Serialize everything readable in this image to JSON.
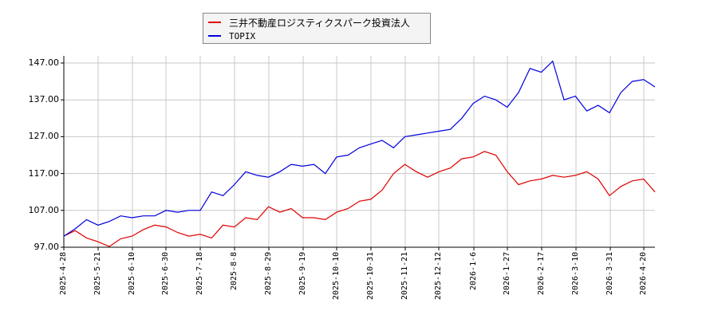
{
  "legend": {
    "items": [
      {
        "label": "三井不動産ロジスティクスパーク投資法人",
        "color": "#e00000"
      },
      {
        "label": "TOPIX",
        "color": "#0000dd"
      }
    ]
  },
  "chart_data": {
    "type": "line",
    "title": "",
    "xlabel": "",
    "ylabel": "",
    "ylim": [
      97,
      149
    ],
    "yticks": [
      "147.00",
      "137.00",
      "127.00",
      "117.00",
      "107.00",
      "97.00"
    ],
    "xticks": [
      "2025-4-28",
      "2025-5-21",
      "2025-6-10",
      "2025-6-30",
      "2025-7-18",
      "2025-8-8",
      "2025-8-29",
      "2025-9-19",
      "2025-10-10",
      "2025-10-31",
      "2025-11-21",
      "2025-12-12",
      "2026-1-6",
      "2026-1-27",
      "2026-2-17",
      "2026-3-10",
      "2026-3-31",
      "2026-4-20"
    ],
    "grid": true,
    "legend_position": "top",
    "series": [
      {
        "name": "三井不動産ロジスティクスパーク投資法人",
        "color": "#e00000",
        "x": [
          "2025-4-28",
          "2025-5-7",
          "2025-5-14",
          "2025-5-21",
          "2025-5-28",
          "2025-6-3",
          "2025-6-10",
          "2025-6-17",
          "2025-6-24",
          "2025-6-30",
          "2025-7-7",
          "2025-7-14",
          "2025-7-18",
          "2025-7-25",
          "2025-8-1",
          "2025-8-8",
          "2025-8-15",
          "2025-8-22",
          "2025-8-29",
          "2025-9-5",
          "2025-9-12",
          "2025-9-19",
          "2025-9-26",
          "2025-10-3",
          "2025-10-10",
          "2025-10-17",
          "2025-10-24",
          "2025-10-31",
          "2025-11-7",
          "2025-11-14",
          "2025-11-21",
          "2025-11-28",
          "2025-12-5",
          "2025-12-12",
          "2025-12-19",
          "2025-12-26",
          "2026-1-6",
          "2026-1-13",
          "2026-1-20",
          "2026-1-27",
          "2026-2-3",
          "2026-2-10",
          "2026-2-17",
          "2026-2-24",
          "2026-3-3",
          "2026-3-10",
          "2026-3-17",
          "2026-3-24",
          "2026-3-31",
          "2026-4-7",
          "2026-4-14",
          "2026-4-20",
          "2026-4-27"
        ],
        "values": [
          100.0,
          101.5,
          99.5,
          98.5,
          97.2,
          99.3,
          100.0,
          101.8,
          103.0,
          102.5,
          101.0,
          100.0,
          100.5,
          99.5,
          103.0,
          102.5,
          105.0,
          104.5,
          108.0,
          106.5,
          107.5,
          105.0,
          105.0,
          104.5,
          106.5,
          107.5,
          109.5,
          110.0,
          112.5,
          117.0,
          119.5,
          117.5,
          116.0,
          117.5,
          118.5,
          121.0,
          121.5,
          123.0,
          122.0,
          117.5,
          114.0,
          115.0,
          115.5,
          116.5,
          116.0,
          116.5,
          117.5,
          115.5,
          111.0,
          113.5,
          115.0,
          115.5,
          112.0
        ]
      },
      {
        "name": "TOPIX",
        "color": "#0000dd",
        "x": [
          "2025-4-28",
          "2025-5-7",
          "2025-5-14",
          "2025-5-21",
          "2025-5-28",
          "2025-6-3",
          "2025-6-10",
          "2025-6-17",
          "2025-6-24",
          "2025-6-30",
          "2025-7-7",
          "2025-7-14",
          "2025-7-18",
          "2025-7-25",
          "2025-8-1",
          "2025-8-8",
          "2025-8-15",
          "2025-8-22",
          "2025-8-29",
          "2025-9-5",
          "2025-9-12",
          "2025-9-19",
          "2025-9-26",
          "2025-10-3",
          "2025-10-10",
          "2025-10-17",
          "2025-10-24",
          "2025-10-31",
          "2025-11-7",
          "2025-11-14",
          "2025-11-21",
          "2025-11-28",
          "2025-12-5",
          "2025-12-12",
          "2025-12-19",
          "2025-12-26",
          "2026-1-6",
          "2026-1-13",
          "2026-1-20",
          "2026-1-27",
          "2026-2-3",
          "2026-2-10",
          "2026-2-17",
          "2026-2-24",
          "2026-3-3",
          "2026-3-10",
          "2026-3-17",
          "2026-3-24",
          "2026-3-31",
          "2026-4-7",
          "2026-4-14",
          "2026-4-20",
          "2026-4-27"
        ],
        "values": [
          100.0,
          102.0,
          104.5,
          103.0,
          104.0,
          105.5,
          105.0,
          105.5,
          105.5,
          107.0,
          106.5,
          107.0,
          107.0,
          112.0,
          111.0,
          114.0,
          117.5,
          116.5,
          116.0,
          117.5,
          119.5,
          119.0,
          119.5,
          117.0,
          121.5,
          122.0,
          124.0,
          125.0,
          126.0,
          124.0,
          127.0,
          127.5,
          128.0,
          128.5,
          129.0,
          132.0,
          136.0,
          138.0,
          137.0,
          135.0,
          139.0,
          145.5,
          144.5,
          147.5,
          137.0,
          138.0,
          134.0,
          135.5,
          133.5,
          139.0,
          142.0,
          142.5,
          140.5
        ]
      }
    ]
  }
}
